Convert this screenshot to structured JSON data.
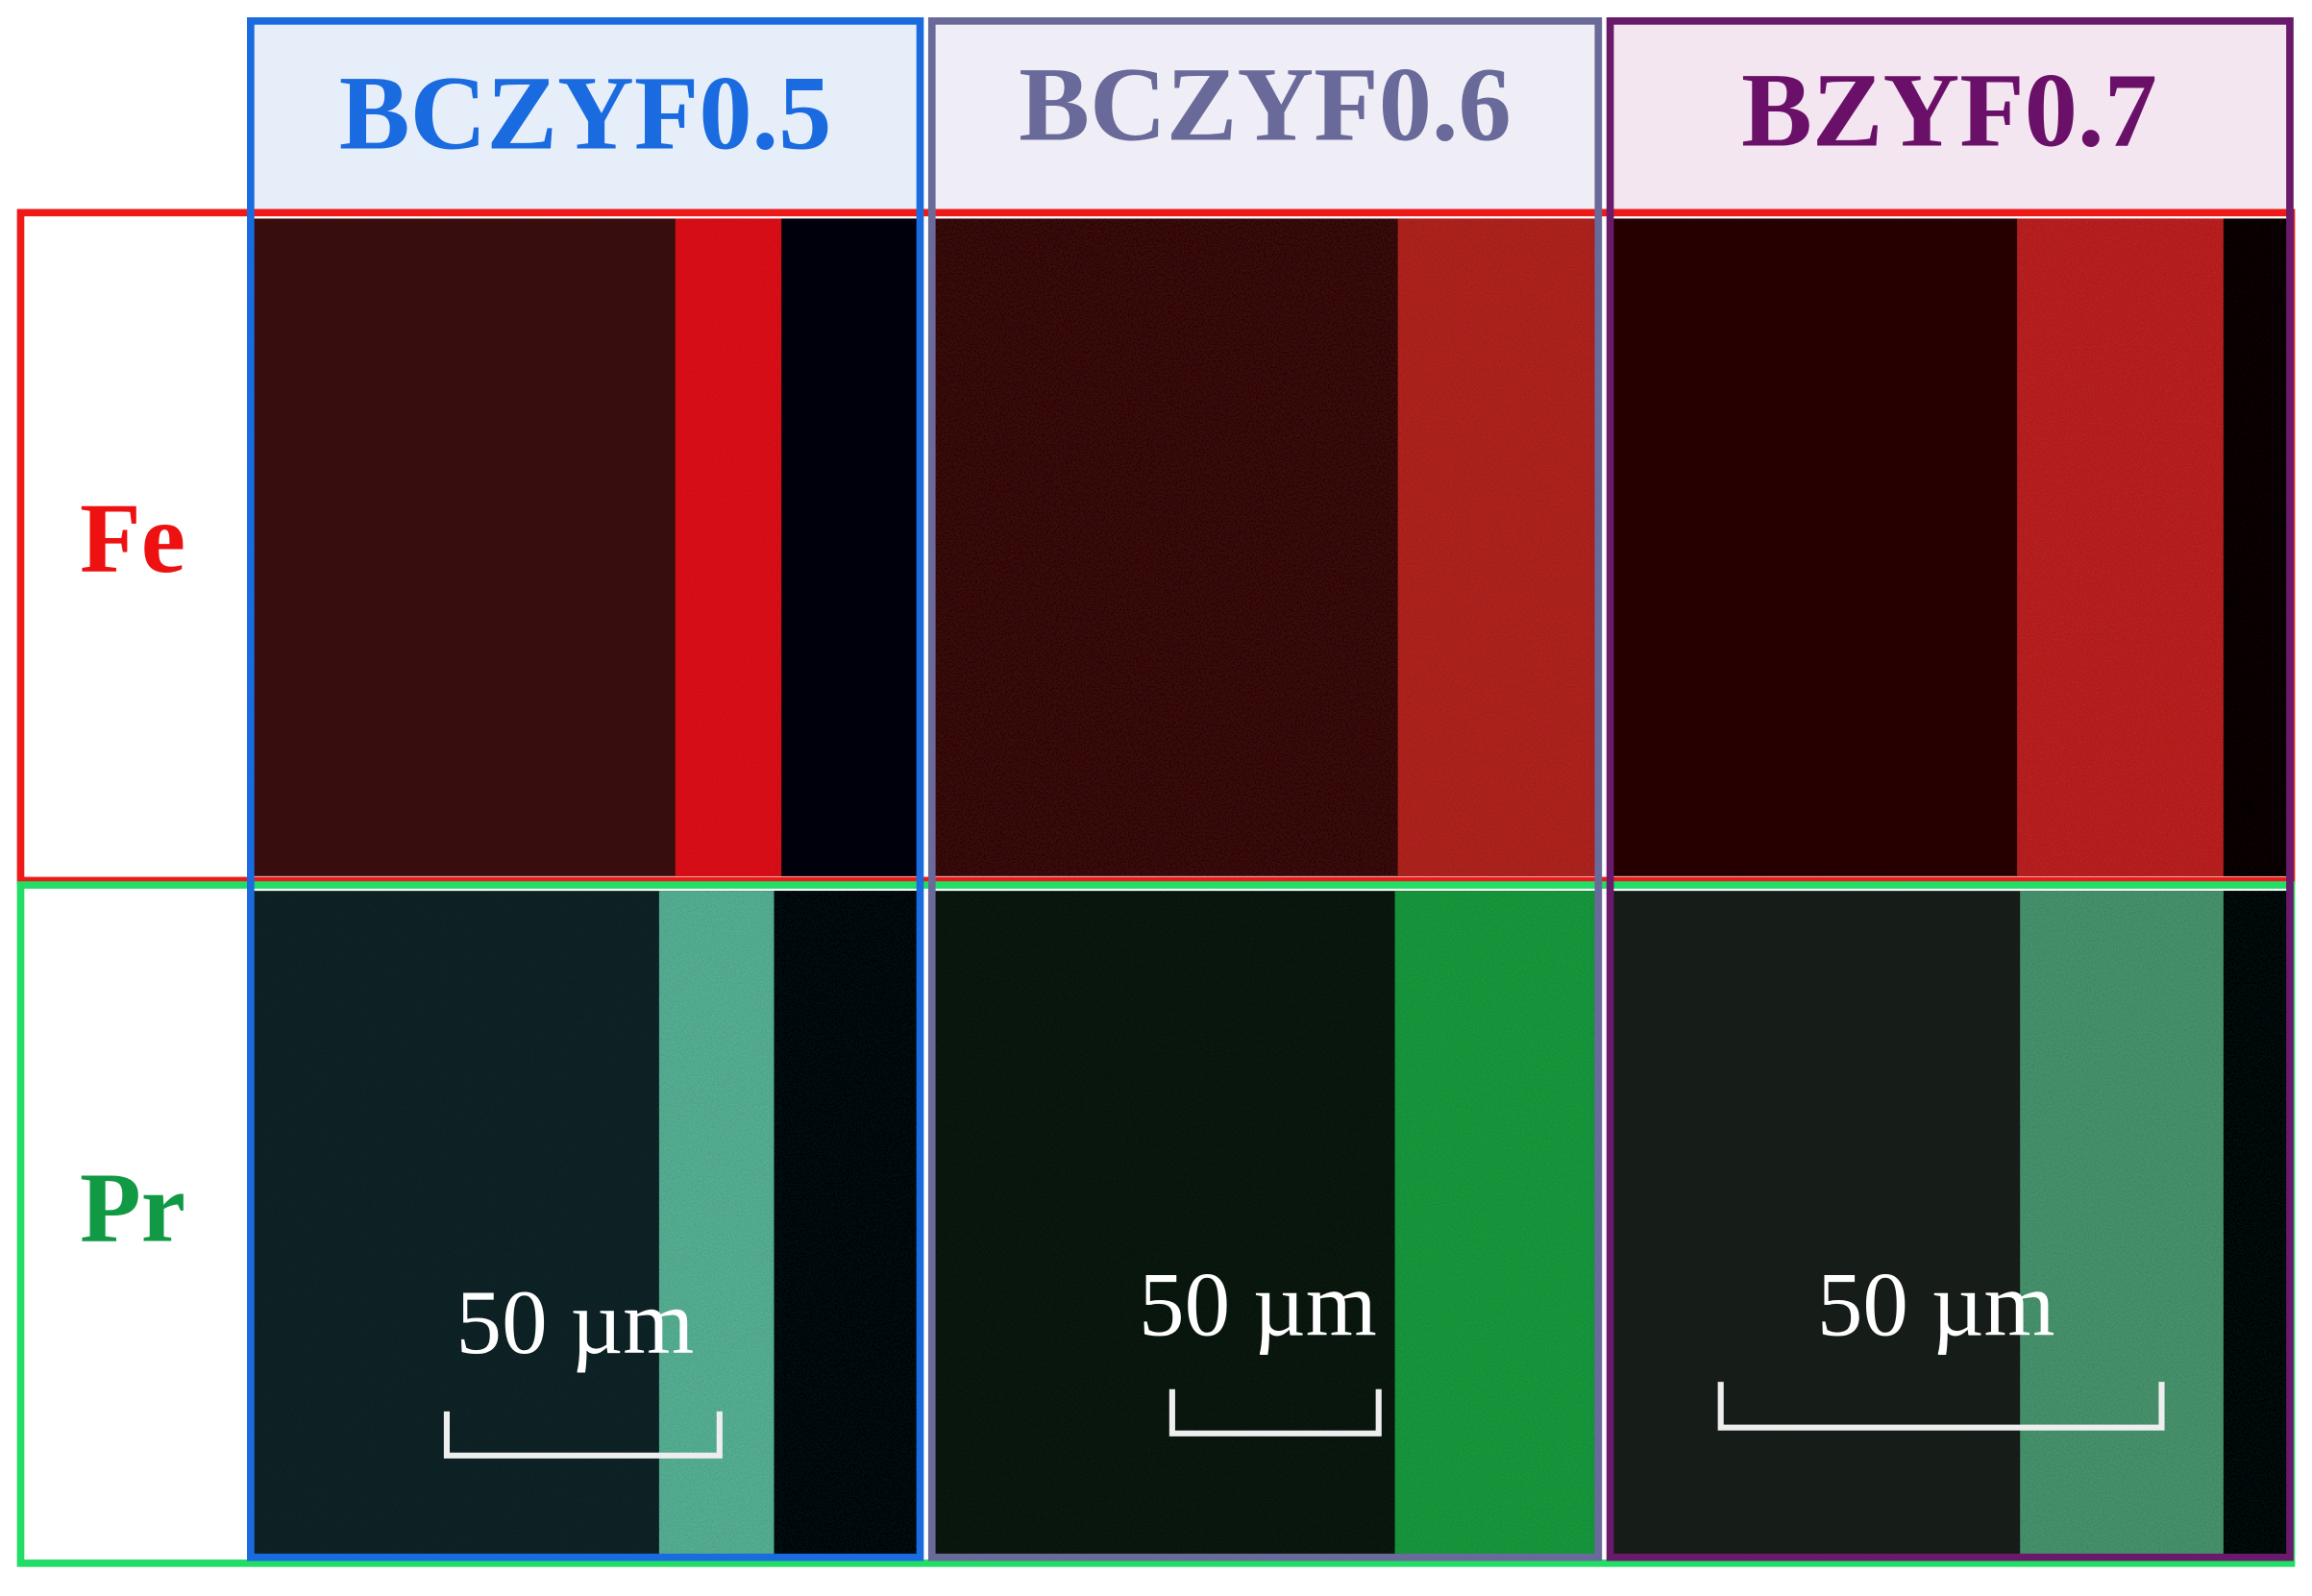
{
  "columns": [
    {
      "label": "BCZYF0.5",
      "scale_bar": "50 µm"
    },
    {
      "label": "BCZYF0.6",
      "scale_bar": "50 µm"
    },
    {
      "label": "BZYF0.7",
      "scale_bar": "50 µm"
    }
  ],
  "rows": [
    {
      "label": "Fe"
    },
    {
      "label": "Pr"
    }
  ]
}
